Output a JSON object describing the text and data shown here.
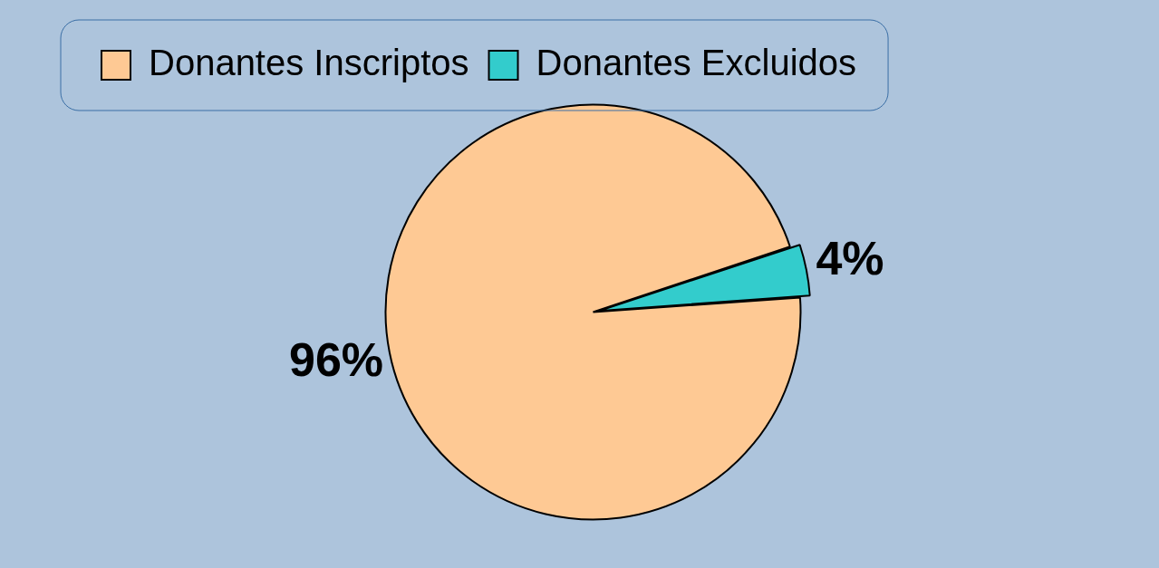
{
  "chart_data": {
    "type": "pie",
    "categories": [
      "Donantes Inscriptos",
      "Donantes Excluidos"
    ],
    "values": [
      96,
      4
    ],
    "colors": [
      "#fec994",
      "#33cccc"
    ],
    "value_labels": [
      "96%",
      "4%"
    ],
    "legend": "top left"
  }
}
